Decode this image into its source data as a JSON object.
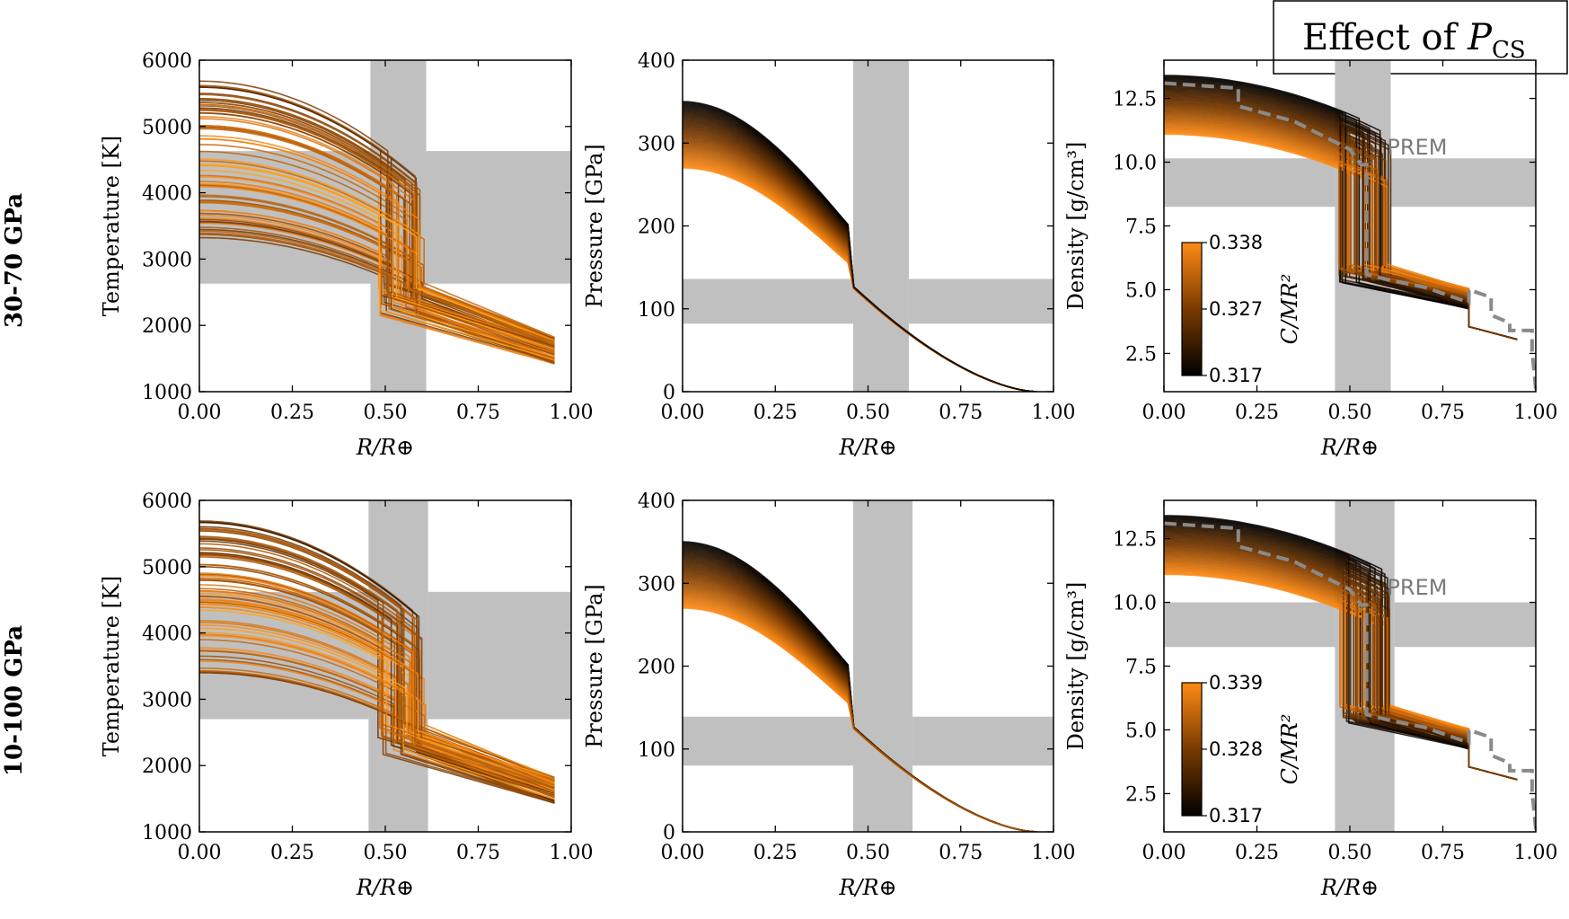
{
  "figure_title": {
    "text": "Effect of ",
    "symbol": "P",
    "subscript": "CS"
  },
  "row_labels": [
    "30-70 GPa",
    "10-100 GPa"
  ],
  "colors": {
    "low": "#000000",
    "mid": "#7a3a00",
    "high": "#ff8a14",
    "shade": "#c0c0c0",
    "prem": "#8a8a8a"
  },
  "colorbar_label": "C/MR²",
  "prem_label": "PREM",
  "x_tick_labels": [
    "0.00",
    "0.25",
    "0.50",
    "0.75",
    "1.00"
  ],
  "chart_data": [
    {
      "type": "line",
      "panel": "temperature-top",
      "xlabel": "R/R⊕",
      "ylabel": "Temperature [K]",
      "xlim": [
        0,
        1
      ],
      "ylim": [
        1000,
        6000
      ],
      "yticks": [
        1000,
        2000,
        3000,
        4000,
        5000,
        6000
      ],
      "shade_x": [
        0.46,
        0.61
      ],
      "shade_y": [
        2630,
        4630
      ],
      "envelope_core_T_center": [
        3320,
        5700
      ],
      "envelope_cmb_T": [
        2150,
        2650
      ],
      "envelope_surface_T": [
        1420,
        1830
      ]
    },
    {
      "type": "line",
      "panel": "pressure-top",
      "xlabel": "R/R⊕",
      "ylabel": "Pressure [GPa]",
      "xlim": [
        0,
        1
      ],
      "ylim": [
        0,
        400
      ],
      "yticks": [
        0,
        100,
        200,
        300,
        400
      ],
      "shade_x": [
        0.46,
        0.61
      ],
      "shade_y": [
        82,
        136
      ],
      "center_pressure_range": [
        270,
        350
      ]
    },
    {
      "type": "line",
      "panel": "density-top",
      "xlabel": "R/R⊕",
      "ylabel": "Density [g/cm³]",
      "xlim": [
        0,
        1
      ],
      "ylim": [
        1,
        14
      ],
      "yticks": [
        2.5,
        5.0,
        7.5,
        10.0,
        12.5
      ],
      "shade_x": [
        0.46,
        0.61
      ],
      "shade_y": [
        8.25,
        10.15
      ],
      "colorbar": {
        "label": "C/MR²",
        "min": 0.317,
        "mid": 0.327,
        "max": 0.338,
        "tick_labels": [
          "0.317",
          "0.327",
          "0.338"
        ]
      },
      "prem": {
        "x": [
          0.0,
          0.2,
          0.2,
          0.35,
          0.5,
          0.53,
          0.545,
          0.545,
          0.6,
          0.7,
          0.82,
          0.82,
          0.88,
          0.88,
          0.93,
          0.93,
          0.99,
          0.99,
          1.0
        ],
        "y": [
          13.1,
          12.9,
          12.2,
          11.6,
          10.5,
          9.9,
          9.9,
          5.6,
          5.4,
          5.1,
          4.5,
          5.0,
          4.7,
          4.0,
          3.7,
          3.4,
          3.4,
          2.6,
          1.1
        ]
      }
    },
    {
      "type": "line",
      "panel": "temperature-bottom",
      "xlabel": "R/R⊕",
      "ylabel": "Temperature [K]",
      "xlim": [
        0,
        1
      ],
      "ylim": [
        1000,
        6000
      ],
      "yticks": [
        1000,
        2000,
        3000,
        4000,
        5000,
        6000
      ],
      "shade_x": [
        0.455,
        0.615
      ],
      "shade_y": [
        2700,
        4620
      ],
      "envelope_core_T_center": [
        3400,
        5700
      ],
      "envelope_cmb_T": [
        2150,
        2650
      ],
      "envelope_surface_T": [
        1420,
        1830
      ]
    },
    {
      "type": "line",
      "panel": "pressure-bottom",
      "xlabel": "R/R⊕",
      "ylabel": "Pressure [GPa]",
      "xlim": [
        0,
        1
      ],
      "ylim": [
        0,
        400
      ],
      "yticks": [
        0,
        100,
        200,
        300,
        400
      ],
      "shade_x": [
        0.46,
        0.62
      ],
      "shade_y": [
        80,
        139
      ],
      "center_pressure_range": [
        270,
        350
      ]
    },
    {
      "type": "line",
      "panel": "density-bottom",
      "xlabel": "R/R⊕",
      "ylabel": "Density [g/cm³]",
      "xlim": [
        0,
        1
      ],
      "ylim": [
        1,
        14
      ],
      "yticks": [
        2.5,
        5.0,
        7.5,
        10.0,
        12.5
      ],
      "shade_x": [
        0.46,
        0.62
      ],
      "shade_y": [
        8.25,
        10.0
      ],
      "colorbar": {
        "label": "C/MR²",
        "min": 0.317,
        "mid": 0.328,
        "max": 0.339,
        "tick_labels": [
          "0.317",
          "0.328",
          "0.339"
        ]
      },
      "prem": {
        "x": [
          0.0,
          0.2,
          0.2,
          0.35,
          0.5,
          0.53,
          0.545,
          0.545,
          0.6,
          0.7,
          0.82,
          0.82,
          0.88,
          0.88,
          0.93,
          0.93,
          0.99,
          0.99,
          1.0
        ],
        "y": [
          13.1,
          12.9,
          12.2,
          11.6,
          10.5,
          9.9,
          9.9,
          5.6,
          5.4,
          5.1,
          4.5,
          5.0,
          4.7,
          4.0,
          3.7,
          3.4,
          3.4,
          2.6,
          1.1
        ]
      }
    }
  ]
}
